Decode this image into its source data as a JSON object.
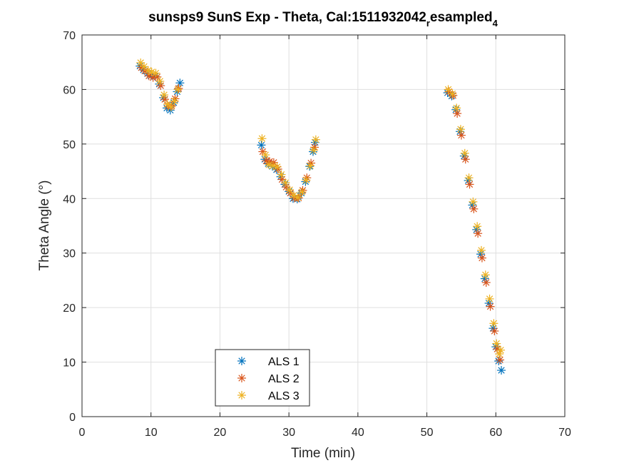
{
  "chart_data": {
    "type": "scatter",
    "title": "sunsps9 SunS Exp - Theta, Cal:1511932042",
    "title_sub1": "r",
    "title_mid": "esampled",
    "title_sub2": "4",
    "xlabel": "Time (min)",
    "ylabel": "Theta Angle (°)",
    "xlim": [
      0,
      70
    ],
    "ylim": [
      0,
      70
    ],
    "xticks": [
      0,
      10,
      20,
      30,
      40,
      50,
      60,
      70
    ],
    "yticks": [
      0,
      10,
      20,
      30,
      40,
      50,
      60,
      70
    ],
    "grid": true,
    "legend_position": "bottom-center",
    "marker": "asterisk",
    "series": [
      {
        "name": "ALS 1",
        "color": "#0072BD",
        "x": [
          8.4,
          8.9,
          9.5,
          10.0,
          10.6,
          11.2,
          11.8,
          12.3,
          12.8,
          13.3,
          13.8,
          14.2,
          26.0,
          26.5,
          27.0,
          27.6,
          28.2,
          28.8,
          29.4,
          30.0,
          30.6,
          31.2,
          31.8,
          32.4,
          33.0,
          33.5,
          33.8,
          53.0,
          53.6,
          54.2,
          54.8,
          55.4,
          56.0,
          56.6,
          57.2,
          57.8,
          58.4,
          59.0,
          59.6,
          60.0,
          60.4,
          60.8
        ],
        "y": [
          64.3,
          63.6,
          62.9,
          62.5,
          62.4,
          61.0,
          58.5,
          56.6,
          56.2,
          57.6,
          59.6,
          61.2,
          49.8,
          47.2,
          46.4,
          45.9,
          45.3,
          44.0,
          42.6,
          41.3,
          40.0,
          39.9,
          41.0,
          43.1,
          45.9,
          48.6,
          50.3,
          59.4,
          58.8,
          56.3,
          52.3,
          47.8,
          43.3,
          38.8,
          34.3,
          29.8,
          25.3,
          20.8,
          16.2,
          12.8,
          10.2,
          8.5
        ]
      },
      {
        "name": "ALS 2",
        "color": "#D95319",
        "x": [
          8.6,
          9.1,
          9.7,
          10.3,
          10.9,
          11.4,
          12.0,
          12.5,
          13.0,
          13.5,
          14.0,
          26.2,
          26.7,
          27.2,
          27.8,
          28.4,
          29.0,
          29.6,
          30.2,
          30.8,
          31.4,
          32.0,
          32.6,
          33.2,
          33.7,
          53.2,
          53.8,
          54.4,
          55.0,
          55.6,
          56.2,
          56.8,
          57.4,
          58.0,
          58.6,
          59.2,
          59.8,
          60.2,
          60.6
        ],
        "y": [
          64.0,
          63.4,
          62.5,
          62.2,
          62.3,
          60.7,
          58.2,
          56.9,
          57.0,
          58.3,
          60.2,
          48.6,
          46.9,
          46.8,
          46.6,
          45.4,
          43.5,
          42.1,
          41.0,
          40.1,
          40.1,
          41.5,
          43.8,
          46.5,
          49.4,
          59.6,
          58.9,
          55.6,
          51.6,
          47.2,
          42.6,
          38.1,
          33.6,
          29.1,
          24.6,
          20.2,
          15.7,
          12.4,
          10.4
        ]
      },
      {
        "name": "ALS 3",
        "color": "#EDB120",
        "x": [
          8.5,
          9.0,
          9.6,
          10.1,
          10.7,
          11.3,
          11.9,
          12.4,
          12.9,
          13.4,
          13.9,
          26.1,
          26.6,
          27.1,
          27.7,
          28.3,
          28.9,
          29.5,
          30.1,
          30.7,
          31.3,
          31.9,
          32.5,
          33.1,
          33.6,
          33.9,
          53.1,
          53.7,
          54.3,
          54.9,
          55.5,
          56.1,
          56.7,
          57.3,
          57.9,
          58.5,
          59.1,
          59.7,
          60.1,
          60.5,
          60.7
        ],
        "y": [
          64.9,
          64.2,
          63.5,
          63.2,
          63.0,
          61.5,
          59.0,
          57.3,
          56.8,
          57.9,
          60.0,
          51.0,
          48.0,
          46.2,
          46.0,
          45.8,
          44.4,
          42.9,
          41.6,
          40.6,
          40.2,
          41.2,
          43.4,
          46.0,
          48.9,
          50.8,
          60.0,
          59.2,
          56.6,
          52.7,
          48.3,
          43.8,
          39.4,
          34.9,
          30.5,
          26.0,
          21.6,
          17.1,
          13.4,
          11.5,
          12.2
        ]
      }
    ]
  }
}
